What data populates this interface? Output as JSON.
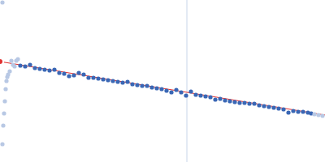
{
  "chart_data": {
    "type": "scatter",
    "xlim": [
      0,
      400
    ],
    "ylim": [
      0,
      200
    ],
    "tick_labels": false,
    "grid": false,
    "vline": 230,
    "vline_color": "#c8d4e8",
    "series": [
      {
        "type": "scatter",
        "color": "#3a67b5",
        "marker": "circle",
        "x": [
          25,
          31,
          37,
          43,
          49,
          55,
          61,
          67,
          73,
          79,
          85,
          91,
          97,
          103,
          109,
          115,
          121,
          127,
          133,
          139,
          145,
          151,
          157,
          163,
          169,
          175,
          181,
          187,
          193,
          199,
          205,
          211,
          217,
          223,
          229,
          235,
          241,
          247,
          253,
          259,
          265,
          271,
          277,
          283,
          289,
          295,
          301,
          307,
          313,
          319,
          325,
          331,
          337,
          343,
          349,
          355,
          361,
          367,
          373,
          379,
          383
        ],
        "values": [
          119,
          118,
          120,
          116,
          115,
          114,
          113,
          114,
          110,
          109,
          106,
          107,
          110,
          108,
          104,
          104,
          103,
          102,
          101,
          100,
          99,
          98,
          99,
          96,
          95,
          94,
          94,
          92,
          91,
          90,
          88,
          86,
          89,
          86,
          82,
          87,
          83,
          82,
          81,
          80,
          77,
          78,
          76,
          75,
          74,
          73,
          73,
          72,
          72,
          70,
          69,
          68,
          67,
          66,
          65,
          61,
          63,
          62,
          62,
          61,
          60
        ]
      },
      {
        "type": "scatter",
        "color": "#b8c8e4",
        "marker": "circle",
        "x": [
          3,
          3,
          4,
          5,
          6,
          7,
          8,
          9,
          10,
          12,
          14,
          16,
          18,
          20,
          22,
          387,
          392,
          397
        ],
        "values": [
          197,
          22,
          45,
          60,
          75,
          90,
          100,
          105,
          108,
          112,
          125,
          120,
          118,
          125,
          127,
          59,
          58,
          57
        ]
      },
      {
        "type": "line",
        "color": "#e03030",
        "line_style": "solid",
        "x": [
          0,
          400
        ],
        "values": [
          124,
          58
        ]
      }
    ]
  }
}
